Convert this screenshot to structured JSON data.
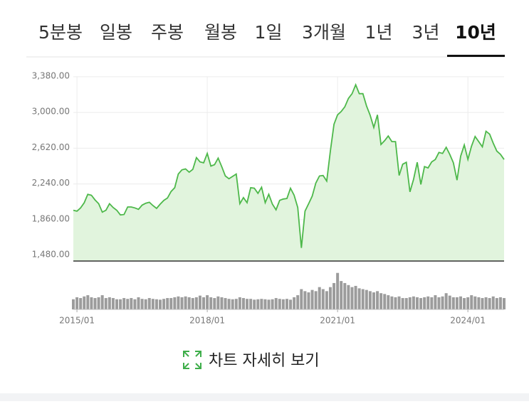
{
  "tabs": [
    "5분봉",
    "일봉",
    "주봉",
    "월봉",
    "1일",
    "3개월",
    "1년",
    "3년",
    "10년"
  ],
  "active_tab": 8,
  "chart_data": {
    "type": "line",
    "x": [
      "2014/12",
      "2015/01",
      "2015/02",
      "2015/03",
      "2015/04",
      "2015/05",
      "2015/06",
      "2015/07",
      "2015/08",
      "2015/09",
      "2015/10",
      "2015/11",
      "2015/12",
      "2016/01",
      "2016/02",
      "2016/03",
      "2016/04",
      "2016/05",
      "2016/06",
      "2016/07",
      "2016/08",
      "2016/09",
      "2016/10",
      "2016/11",
      "2016/12",
      "2017/01",
      "2017/02",
      "2017/03",
      "2017/04",
      "2017/05",
      "2017/06",
      "2017/07",
      "2017/08",
      "2017/09",
      "2017/10",
      "2017/11",
      "2017/12",
      "2018/01",
      "2018/02",
      "2018/03",
      "2018/04",
      "2018/05",
      "2018/06",
      "2018/07",
      "2018/08",
      "2018/09",
      "2018/10",
      "2018/11",
      "2018/12",
      "2019/01",
      "2019/02",
      "2019/03",
      "2019/04",
      "2019/05",
      "2019/06",
      "2019/07",
      "2019/08",
      "2019/09",
      "2019/10",
      "2019/11",
      "2019/12",
      "2020/01",
      "2020/02",
      "2020/03",
      "2020/04",
      "2020/05",
      "2020/06",
      "2020/07",
      "2020/08",
      "2020/09",
      "2020/10",
      "2020/11",
      "2020/12",
      "2021/01",
      "2021/02",
      "2021/03",
      "2021/04",
      "2021/05",
      "2021/06",
      "2021/07",
      "2021/08",
      "2021/09",
      "2021/10",
      "2021/11",
      "2021/12",
      "2022/01",
      "2022/02",
      "2022/03",
      "2022/04",
      "2022/05",
      "2022/06",
      "2022/07",
      "2022/08",
      "2022/09",
      "2022/10",
      "2022/11",
      "2022/12",
      "2023/01",
      "2023/02",
      "2023/03",
      "2023/04",
      "2023/05",
      "2023/06",
      "2023/07",
      "2023/08",
      "2023/09",
      "2023/10",
      "2023/11",
      "2023/12",
      "2024/01",
      "2024/02",
      "2024/03",
      "2024/04",
      "2024/05",
      "2024/06",
      "2024/07",
      "2024/08",
      "2024/09",
      "2024/10",
      "2024/11"
    ],
    "series": [
      {
        "color": "#4db84a",
        "fill": "#e1f4dd",
        "values": [
          1960,
          1950,
          1985,
          2040,
          2130,
          2120,
          2070,
          2030,
          1940,
          1960,
          2030,
          1990,
          1960,
          1910,
          1915,
          1995,
          1995,
          1985,
          1970,
          2015,
          2035,
          2045,
          2010,
          1980,
          2025,
          2065,
          2090,
          2160,
          2200,
          2345,
          2390,
          2400,
          2365,
          2395,
          2520,
          2475,
          2465,
          2565,
          2430,
          2445,
          2515,
          2425,
          2325,
          2295,
          2320,
          2345,
          2030,
          2095,
          2040,
          2200,
          2195,
          2140,
          2205,
          2040,
          2130,
          2025,
          1965,
          2065,
          2080,
          2085,
          2195,
          2120,
          1990,
          1560,
          1950,
          2030,
          2110,
          2250,
          2325,
          2330,
          2270,
          2590,
          2875,
          2975,
          3010,
          3060,
          3150,
          3200,
          3295,
          3200,
          3200,
          3070,
          2970,
          2840,
          2975,
          2660,
          2700,
          2750,
          2690,
          2690,
          2330,
          2450,
          2470,
          2155,
          2290,
          2470,
          2235,
          2425,
          2410,
          2475,
          2500,
          2575,
          2565,
          2630,
          2555,
          2465,
          2280,
          2535,
          2655,
          2500,
          2640,
          2745,
          2690,
          2635,
          2800,
          2770,
          2675,
          2590,
          2555,
          2500
        ]
      }
    ],
    "ylim": [
      1420,
      3440
    ],
    "yticks": [
      {
        "value": 1480,
        "label": "1,480.00"
      },
      {
        "value": 1860,
        "label": "1,860.00"
      },
      {
        "value": 2240,
        "label": "2,240.00"
      },
      {
        "value": 2620,
        "label": "2,620.00"
      },
      {
        "value": 3000,
        "label": "3,000.00"
      },
      {
        "value": 3380,
        "label": "3,380.00"
      }
    ],
    "xticks": [
      "2015/01",
      "2018/01",
      "2021/01",
      "2024/01"
    ],
    "grid": true,
    "volume": {
      "color": "#9c9c9c",
      "ylim": [
        0,
        100
      ],
      "values": [
        25,
        30,
        28,
        32,
        35,
        30,
        28,
        30,
        35,
        28,
        30,
        28,
        25,
        25,
        28,
        26,
        28,
        25,
        30,
        26,
        25,
        28,
        26,
        25,
        24,
        26,
        28,
        28,
        30,
        32,
        30,
        32,
        30,
        28,
        30,
        34,
        30,
        35,
        30,
        28,
        32,
        30,
        28,
        26,
        25,
        26,
        30,
        28,
        26,
        26,
        24,
        25,
        26,
        25,
        24,
        25,
        28,
        26,
        25,
        26,
        24,
        30,
        35,
        50,
        45,
        42,
        48,
        45,
        55,
        50,
        45,
        55,
        65,
        90,
        70,
        65,
        60,
        55,
        58,
        52,
        50,
        48,
        45,
        42,
        45,
        40,
        38,
        35,
        32,
        30,
        32,
        28,
        28,
        30,
        32,
        30,
        28,
        30,
        32,
        30,
        35,
        30,
        32,
        40,
        34,
        30,
        30,
        32,
        28,
        30,
        35,
        32,
        30,
        28,
        30,
        28,
        32,
        28,
        30,
        28
      ]
    }
  },
  "link": "차트 자세히 보기"
}
